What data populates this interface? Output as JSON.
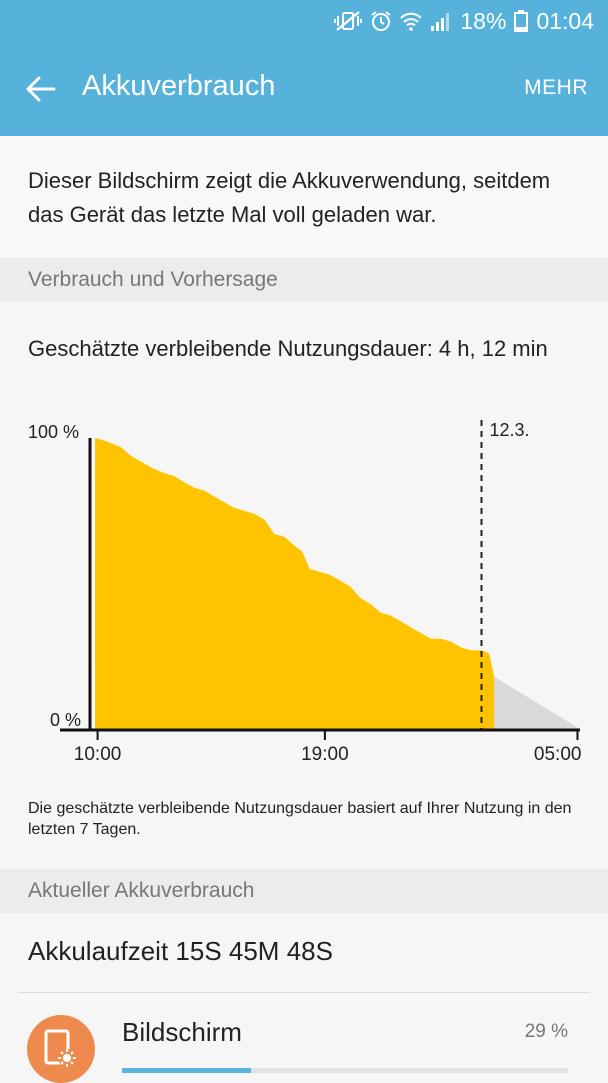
{
  "statusbar": {
    "battery_percent": "18%",
    "time": "01:04",
    "icons": [
      "vibrate-mute-icon",
      "alarm-icon",
      "wifi-icon",
      "cell-signal-icon",
      "battery-icon"
    ]
  },
  "appbar": {
    "title": "Akkuverbrauch",
    "more_label": "MEHR"
  },
  "intro_text": "Dieser Bildschirm zeigt die Akkuverwendung, seitdem das Gerät das letzte Mal voll geladen war.",
  "section_usage": "Verbrauch und Vorhersage",
  "estimate_text": "Geschätzte verbleibende Nutzungsdauer: 4 h, 12 min",
  "chart_data": {
    "type": "area",
    "y_labels": [
      "100 %",
      "0 %"
    ],
    "ylim": [
      0,
      100
    ],
    "x_ticks": [
      {
        "label": "10:00",
        "t": 0
      },
      {
        "label": "19:00",
        "t": 9
      },
      {
        "label": "05:00",
        "t": 19
      }
    ],
    "xlim": [
      -0.3,
      19.1
    ],
    "day_marker": {
      "label": "12.3.",
      "t": 15.2
    },
    "series": [
      {
        "kind": "actual",
        "color": "#ffc400",
        "x": [
          -0.1,
          0.3,
          0.9,
          1.3,
          1.7,
          2.1,
          2.6,
          3.0,
          3.4,
          3.8,
          4.2,
          4.6,
          5.0,
          5.4,
          5.8,
          6.2,
          6.6,
          7.0,
          7.4,
          7.8,
          8.1,
          8.4,
          8.8,
          9.2,
          9.6,
          10.0,
          10.4,
          10.8,
          11.2,
          11.6,
          12.0,
          12.4,
          12.8,
          13.2,
          13.6,
          14.0,
          14.4,
          14.8,
          15.2,
          15.5,
          15.7
        ],
        "y": [
          100,
          99,
          97,
          94,
          92,
          90,
          88,
          87,
          85,
          83,
          82,
          80,
          78,
          76,
          75,
          74,
          72,
          67,
          66,
          63,
          61,
          55,
          54,
          53,
          51,
          49,
          45,
          43,
          40,
          39,
          37,
          35,
          33,
          31,
          31,
          30,
          28,
          27,
          27,
          26,
          18
        ]
      },
      {
        "kind": "forecast",
        "color": "#d9d9d9",
        "x": [
          15.7,
          19.1
        ],
        "y": [
          18,
          0
        ]
      }
    ]
  },
  "footnote": "Die geschätzte verbleibende Nutzungsdauer basiert auf Ihrer Nutzung in den letzten 7 Tagen.",
  "section_current": "Aktueller Akkuverbrauch",
  "runtime_text": "Akkulaufzeit 15S 45M 48S",
  "apps": [
    {
      "name": "Bildschirm",
      "percent_label": "29 %",
      "percent": 29,
      "icon": "screen-brightness-icon",
      "icon_color": "#ee8a4e"
    }
  ],
  "colors": {
    "accent": "#56b2da",
    "bar": "#5ab5de"
  }
}
